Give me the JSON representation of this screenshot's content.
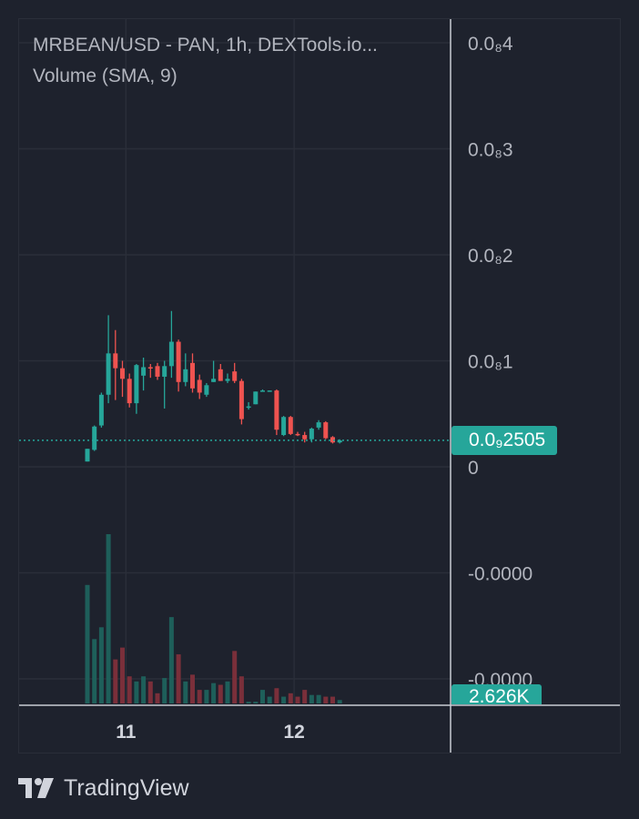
{
  "header": {
    "title": "MRBEAN/USD - PAN, 1h, DEXTools.io...",
    "volume_label": "Volume (SMA, 9)"
  },
  "price_axis": {
    "ticks": [
      {
        "label": "0.0₈4",
        "value": 4
      },
      {
        "label": "0.0₈3",
        "value": 3
      },
      {
        "label": "0.0₈2",
        "value": 2
      },
      {
        "label": "0.0₈1",
        "value": 1
      },
      {
        "label": "0",
        "value": 0
      },
      {
        "label": "-0.0000",
        "value": -1
      },
      {
        "label": "-0.0000",
        "value": -2
      }
    ],
    "current_price_label": "0.0₉2505",
    "current_price_value": 0.25
  },
  "volume_axis": {
    "current_volume_label": "2.626K"
  },
  "time_axis": {
    "ticks": [
      {
        "label": "11",
        "index": 5.5
      },
      {
        "label": "12",
        "index": 29.5
      }
    ]
  },
  "chart_data": {
    "type": "candlestick",
    "price_unit": "1e-8 USD",
    "ylim": [
      -2.2,
      4.2
    ],
    "up_color": "#26a69a",
    "down_color": "#ef5350",
    "candles": [
      {
        "o": 0.05,
        "h": 0.17,
        "l": 0.05,
        "c": 0.17
      },
      {
        "o": 0.16,
        "h": 0.39,
        "l": 0.15,
        "c": 0.38
      },
      {
        "o": 0.39,
        "h": 0.7,
        "l": 0.37,
        "c": 0.68
      },
      {
        "o": 0.68,
        "h": 1.43,
        "l": 0.6,
        "c": 1.07
      },
      {
        "o": 1.07,
        "h": 1.29,
        "l": 0.63,
        "c": 0.93
      },
      {
        "o": 0.93,
        "h": 1.0,
        "l": 0.66,
        "c": 0.83
      },
      {
        "o": 0.83,
        "h": 0.88,
        "l": 0.56,
        "c": 0.6
      },
      {
        "o": 0.6,
        "h": 0.97,
        "l": 0.5,
        "c": 0.96
      },
      {
        "o": 0.86,
        "h": 1.03,
        "l": 0.72,
        "c": 0.94
      },
      {
        "o": 0.94,
        "h": 0.97,
        "l": 0.84,
        "c": 0.93
      },
      {
        "o": 0.95,
        "h": 0.98,
        "l": 0.82,
        "c": 0.85
      },
      {
        "o": 0.85,
        "h": 1.0,
        "l": 0.55,
        "c": 0.95
      },
      {
        "o": 0.95,
        "h": 1.47,
        "l": 0.84,
        "c": 1.18
      },
      {
        "o": 1.18,
        "h": 1.2,
        "l": 0.71,
        "c": 0.8
      },
      {
        "o": 0.8,
        "h": 1.07,
        "l": 0.76,
        "c": 0.92
      },
      {
        "o": 0.98,
        "h": 1.07,
        "l": 0.7,
        "c": 0.74
      },
      {
        "o": 0.82,
        "h": 0.87,
        "l": 0.64,
        "c": 0.7
      },
      {
        "o": 0.68,
        "h": 0.79,
        "l": 0.66,
        "c": 0.77
      },
      {
        "o": 0.8,
        "h": 1.0,
        "l": 0.8,
        "c": 0.83
      },
      {
        "o": 0.92,
        "h": 0.97,
        "l": 0.81,
        "c": 0.81
      },
      {
        "o": 0.81,
        "h": 0.88,
        "l": 0.79,
        "c": 0.83
      },
      {
        "o": 0.9,
        "h": 0.98,
        "l": 0.79,
        "c": 0.81
      },
      {
        "o": 0.81,
        "h": 0.83,
        "l": 0.4,
        "c": 0.45
      },
      {
        "o": 0.56,
        "h": 0.61,
        "l": 0.54,
        "c": 0.57
      },
      {
        "o": 0.59,
        "h": 0.71,
        "l": 0.59,
        "c": 0.71
      },
      {
        "o": 0.71,
        "h": 0.73,
        "l": 0.71,
        "c": 0.72
      },
      {
        "o": 0.72,
        "h": 0.72,
        "l": 0.71,
        "c": 0.72
      },
      {
        "o": 0.72,
        "h": 0.73,
        "l": 0.3,
        "c": 0.35
      },
      {
        "o": 0.3,
        "h": 0.48,
        "l": 0.29,
        "c": 0.47
      },
      {
        "o": 0.47,
        "h": 0.48,
        "l": 0.3,
        "c": 0.31
      },
      {
        "o": 0.31,
        "h": 0.33,
        "l": 0.29,
        "c": 0.3
      },
      {
        "o": 0.3,
        "h": 0.33,
        "l": 0.23,
        "c": 0.26
      },
      {
        "o": 0.26,
        "h": 0.37,
        "l": 0.23,
        "c": 0.36
      },
      {
        "o": 0.37,
        "h": 0.44,
        "l": 0.35,
        "c": 0.42
      },
      {
        "o": 0.42,
        "h": 0.43,
        "l": 0.26,
        "c": 0.27
      },
      {
        "o": 0.28,
        "h": 0.29,
        "l": 0.22,
        "c": 0.23
      },
      {
        "o": 0.23,
        "h": 0.26,
        "l": 0.22,
        "c": 0.25
      }
    ],
    "volume_unit": "relative",
    "volume_max": 100,
    "volumes": [
      70,
      38,
      45,
      100,
      26,
      33,
      16,
      13,
      16,
      13,
      6,
      15,
      51,
      29,
      13,
      17,
      8,
      8,
      12,
      11,
      13,
      31,
      16,
      1,
      1,
      8,
      4,
      9,
      4,
      6,
      4,
      8,
      5,
      5,
      4,
      4,
      2
    ]
  },
  "footer": {
    "brand": "TradingView"
  }
}
